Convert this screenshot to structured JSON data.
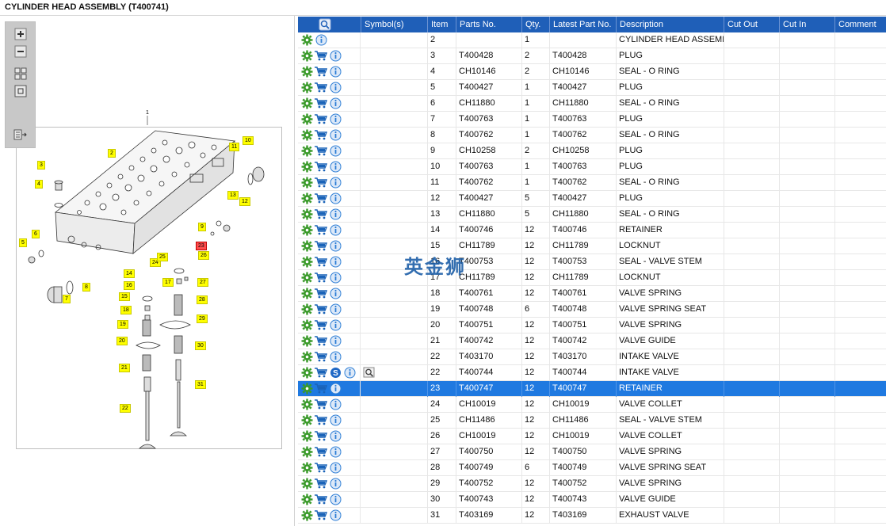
{
  "title": "CYLINDER HEAD ASSEMBLY (T400741)",
  "toolbar": {
    "icons": [
      "zoom-in-icon",
      "zoom-out-icon",
      "fit-all-icon",
      "fit-window-icon",
      "export-icon"
    ]
  },
  "diagram": {
    "assembly_callout": "1",
    "callouts": [
      "2",
      "3",
      "4",
      "5",
      "6",
      "7",
      "8",
      "9",
      "10",
      "11",
      "12",
      "13",
      "14",
      "15",
      "16",
      "17",
      "18",
      "19",
      "20",
      "21",
      "22",
      "23",
      "24",
      "25",
      "26",
      "27",
      "28",
      "29",
      "30",
      "31"
    ],
    "highlighted": "23"
  },
  "grid": {
    "headers": [
      "Symbol(s)",
      "Item",
      "Parts No.",
      "Qty.",
      "Latest Part No.",
      "Description",
      "Cut Out",
      "Cut In",
      "Comment"
    ],
    "selected_row": 23,
    "rows": [
      {
        "item": "2",
        "part": "",
        "qty": "1",
        "latest": "",
        "desc": "CYLINDER HEAD ASSEMBLY",
        "icons": "gear-info"
      },
      {
        "item": "3",
        "part": "T400428",
        "qty": "2",
        "latest": "T400428",
        "desc": "PLUG",
        "icons": "full"
      },
      {
        "item": "4",
        "part": "CH10146",
        "qty": "2",
        "latest": "CH10146",
        "desc": "SEAL - O RING",
        "icons": "full"
      },
      {
        "item": "5",
        "part": "T400427",
        "qty": "1",
        "latest": "T400427",
        "desc": "PLUG",
        "icons": "full"
      },
      {
        "item": "6",
        "part": "CH11880",
        "qty": "1",
        "latest": "CH11880",
        "desc": "SEAL - O RING",
        "icons": "full"
      },
      {
        "item": "7",
        "part": "T400763",
        "qty": "1",
        "latest": "T400763",
        "desc": "PLUG",
        "icons": "full"
      },
      {
        "item": "8",
        "part": "T400762",
        "qty": "1",
        "latest": "T400762",
        "desc": "SEAL - O RING",
        "icons": "full"
      },
      {
        "item": "9",
        "part": "CH10258",
        "qty": "2",
        "latest": "CH10258",
        "desc": "PLUG",
        "icons": "full"
      },
      {
        "item": "10",
        "part": "T400763",
        "qty": "1",
        "latest": "T400763",
        "desc": "PLUG",
        "icons": "full"
      },
      {
        "item": "11",
        "part": "T400762",
        "qty": "1",
        "latest": "T400762",
        "desc": "SEAL - O RING",
        "icons": "full"
      },
      {
        "item": "12",
        "part": "T400427",
        "qty": "5",
        "latest": "T400427",
        "desc": "PLUG",
        "icons": "full"
      },
      {
        "item": "13",
        "part": "CH11880",
        "qty": "5",
        "latest": "CH11880",
        "desc": "SEAL - O RING",
        "icons": "full"
      },
      {
        "item": "14",
        "part": "T400746",
        "qty": "12",
        "latest": "T400746",
        "desc": "RETAINER",
        "icons": "full"
      },
      {
        "item": "15",
        "part": "CH11789",
        "qty": "12",
        "latest": "CH11789",
        "desc": "LOCKNUT",
        "icons": "full"
      },
      {
        "item": "16",
        "part": "T400753",
        "qty": "12",
        "latest": "T400753",
        "desc": "SEAL - VALVE STEM",
        "icons": "full"
      },
      {
        "item": "17",
        "part": "CH11789",
        "qty": "12",
        "latest": "CH11789",
        "desc": "LOCKNUT",
        "icons": "full"
      },
      {
        "item": "18",
        "part": "T400761",
        "qty": "12",
        "latest": "T400761",
        "desc": "VALVE SPRING",
        "icons": "full"
      },
      {
        "item": "19",
        "part": "T400748",
        "qty": "6",
        "latest": "T400748",
        "desc": "VALVE SPRING SEAT",
        "icons": "full"
      },
      {
        "item": "20",
        "part": "T400751",
        "qty": "12",
        "latest": "T400751",
        "desc": "VALVE SPRING",
        "icons": "full"
      },
      {
        "item": "21",
        "part": "T400742",
        "qty": "12",
        "latest": "T400742",
        "desc": "VALVE GUIDE",
        "icons": "full"
      },
      {
        "item": "22",
        "part": "T403170",
        "qty": "12",
        "latest": "T403170",
        "desc": "INTAKE VALVE",
        "icons": "full"
      },
      {
        "item": "22",
        "part": "T400744",
        "qty": "12",
        "latest": "T400744",
        "desc": "INTAKE VALVE",
        "icons": "full-s-magn"
      },
      {
        "item": "23",
        "part": "T400747",
        "qty": "12",
        "latest": "T400747",
        "desc": "RETAINER",
        "icons": "full"
      },
      {
        "item": "24",
        "part": "CH10019",
        "qty": "12",
        "latest": "CH10019",
        "desc": "VALVE COLLET",
        "icons": "full"
      },
      {
        "item": "25",
        "part": "CH11486",
        "qty": "12",
        "latest": "CH11486",
        "desc": "SEAL - VALVE STEM",
        "icons": "full"
      },
      {
        "item": "26",
        "part": "CH10019",
        "qty": "12",
        "latest": "CH10019",
        "desc": "VALVE COLLET",
        "icons": "full"
      },
      {
        "item": "27",
        "part": "T400750",
        "qty": "12",
        "latest": "T400750",
        "desc": "VALVE SPRING",
        "icons": "full"
      },
      {
        "item": "28",
        "part": "T400749",
        "qty": "6",
        "latest": "T400749",
        "desc": "VALVE SPRING SEAT",
        "icons": "full"
      },
      {
        "item": "29",
        "part": "T400752",
        "qty": "12",
        "latest": "T400752",
        "desc": "VALVE SPRING",
        "icons": "full"
      },
      {
        "item": "30",
        "part": "T400743",
        "qty": "12",
        "latest": "T400743",
        "desc": "VALVE GUIDE",
        "icons": "full"
      },
      {
        "item": "31",
        "part": "T403169",
        "qty": "12",
        "latest": "T403169",
        "desc": "EXHAUST VALVE",
        "icons": "full"
      }
    ]
  },
  "watermark": "英金狮",
  "colors": {
    "header_bg": "#1f5fb8",
    "selected_bg": "#1f79e0",
    "callout_yellow": "#ffff00",
    "callout_highlight": "#ff4d4d",
    "gear_green": "#3a9a2a",
    "cart_blue": "#1a63b8",
    "info_blue": "#2f7fd6"
  }
}
